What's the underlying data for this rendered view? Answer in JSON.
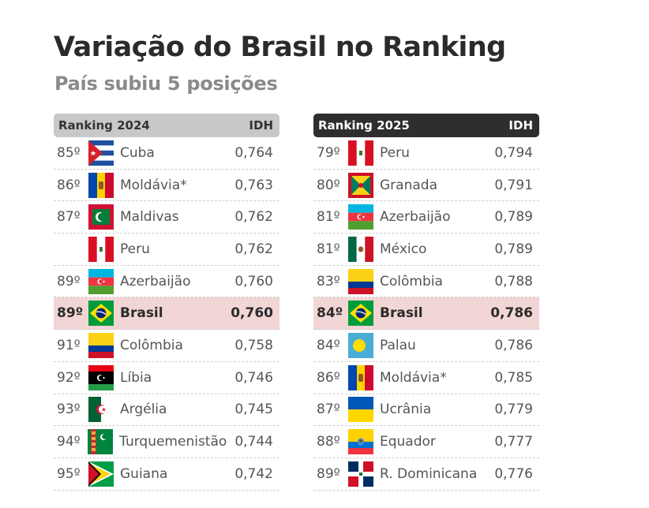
{
  "header": {
    "title": "Variação do Brasil no Ranking",
    "subtitle": "País subiu 5 posições"
  },
  "ranking_2024": {
    "label": "Ranking 2024",
    "idh_label": "IDH",
    "rows": [
      {
        "rank": "85º",
        "country": "Cuba",
        "idh": "0,764",
        "flag": "cuba-flag-icon"
      },
      {
        "rank": "86º",
        "country": "Moldávia*",
        "idh": "0,763",
        "flag": "moldova-flag-icon"
      },
      {
        "rank": "87º",
        "country": "Maldivas",
        "idh": "0,762",
        "flag": "maldives-flag-icon"
      },
      {
        "rank": "",
        "country": "Peru",
        "idh": "0,762",
        "flag": "peru-flag-icon"
      },
      {
        "rank": "89º",
        "country": "Azerbaijão",
        "idh": "0,760",
        "flag": "azerbaijan-flag-icon"
      },
      {
        "rank": "89º",
        "country": "Brasil",
        "idh": "0,760",
        "flag": "brazil-flag-icon",
        "highlight": true
      },
      {
        "rank": "91º",
        "country": "Colômbia",
        "idh": "0,758",
        "flag": "colombia-flag-icon"
      },
      {
        "rank": "92º",
        "country": "Líbia",
        "idh": "0,746",
        "flag": "libya-flag-icon"
      },
      {
        "rank": "93º",
        "country": "Argélia",
        "idh": "0,745",
        "flag": "algeria-flag-icon"
      },
      {
        "rank": "94º",
        "country": "Turquemenistão",
        "idh": "0,744",
        "flag": "turkmenistan-flag-icon"
      },
      {
        "rank": "95º",
        "country": "Guiana",
        "idh": "0,742",
        "flag": "guyana-flag-icon"
      }
    ]
  },
  "ranking_2025": {
    "label": "Ranking 2025",
    "idh_label": "IDH",
    "rows": [
      {
        "rank": "79º",
        "country": "Peru",
        "idh": "0,794",
        "flag": "peru-flag-icon"
      },
      {
        "rank": "80º",
        "country": "Granada",
        "idh": "0,791",
        "flag": "grenada-flag-icon"
      },
      {
        "rank": "81º",
        "country": "Azerbaijão",
        "idh": "0,789",
        "flag": "azerbaijan-flag-icon"
      },
      {
        "rank": "81º",
        "country": "México",
        "idh": "0,789",
        "flag": "mexico-flag-icon"
      },
      {
        "rank": "83º",
        "country": "Colômbia",
        "idh": "0,788",
        "flag": "colombia-flag-icon"
      },
      {
        "rank": "84º",
        "country": "Brasil",
        "idh": "0,786",
        "flag": "brazil-flag-icon",
        "highlight": true
      },
      {
        "rank": "84º",
        "country": "Palau",
        "idh": "0,786",
        "flag": "palau-flag-icon"
      },
      {
        "rank": "86º",
        "country": "Moldávia*",
        "idh": "0,785",
        "flag": "moldova-flag-icon"
      },
      {
        "rank": "87º",
        "country": "Ucrânia",
        "idh": "0,779",
        "flag": "ukraine-flag-icon"
      },
      {
        "rank": "88º",
        "country": "Equador",
        "idh": "0,777",
        "flag": "ecuador-flag-icon"
      },
      {
        "rank": "89º",
        "country": "R. Dominicana",
        "idh": "0,776",
        "flag": "dominican-republic-flag-icon"
      }
    ]
  }
}
